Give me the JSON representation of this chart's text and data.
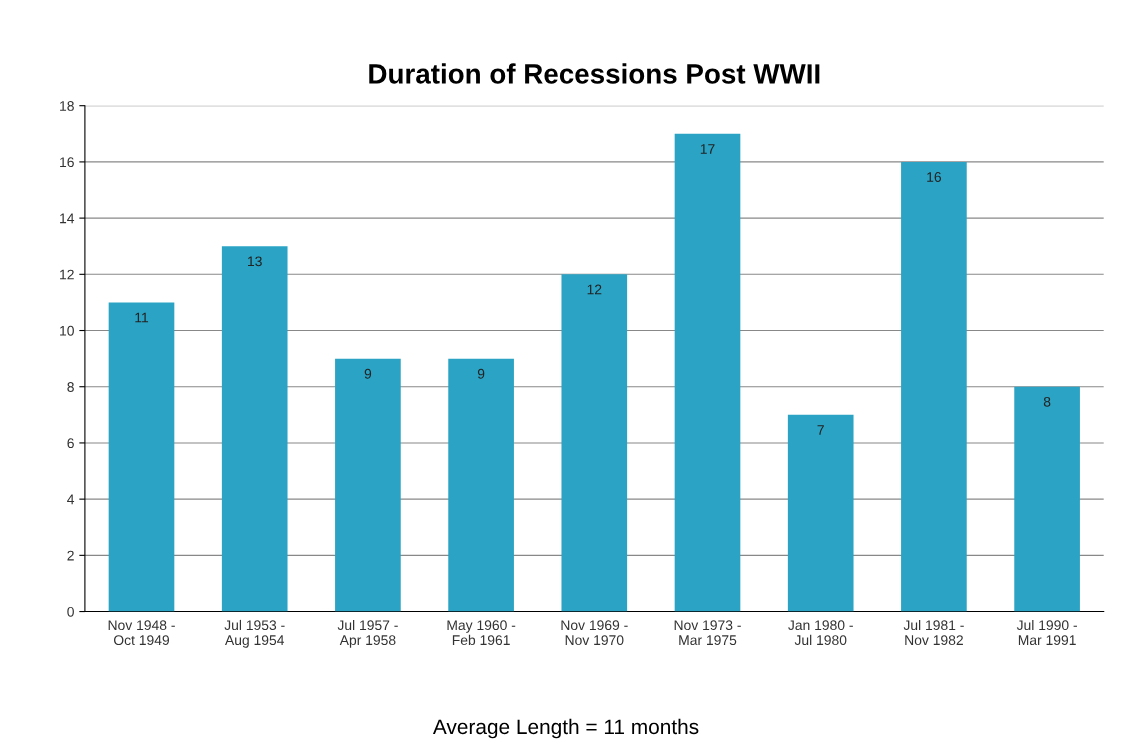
{
  "chart_data": {
    "type": "bar",
    "title": "Duration of Recessions Post WWII",
    "categories": [
      "Nov 1948 -\nOct 1949",
      "Jul 1953 -\nAug 1954",
      "Jul 1957 -\nApr 1958",
      "May 1960 -\nFeb 1961",
      "Nov 1969 -\nNov 1970",
      "Nov 1973 -\nMar 1975",
      "Jan 1980 -\nJul 1980",
      "Jul 1981 -\nNov 1982",
      "Jul 1990 -\nMar 1991"
    ],
    "values": [
      11,
      13,
      9,
      9,
      12,
      17,
      7,
      16,
      8
    ],
    "color": "#2aa3c4",
    "data_labels": true,
    "ylim": [
      0,
      18
    ],
    "yticks": [
      0,
      2,
      4,
      6,
      8,
      10,
      12,
      14,
      16,
      18
    ],
    "grid": "y",
    "annotations": [
      "Average Length = 11 months"
    ]
  }
}
